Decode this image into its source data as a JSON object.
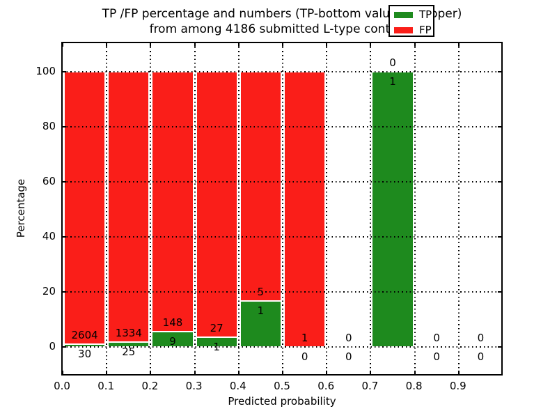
{
  "title_line1": "TP /FP percentage and numbers (TP-bottom value, FP-upper)",
  "title_line2": "from among 4186 submitted L-type contacts",
  "chart_data": {
    "type": "bar",
    "stacked": true,
    "title": "TP /FP percentage and numbers (TP-bottom value, FP-upper) from among 4186 submitted L-type contacts",
    "xlabel": "Predicted probability",
    "ylabel": "Percentage",
    "total_submitted": 4186,
    "xlim": [
      0.0,
      1.0
    ],
    "ylim": [
      -10.3,
      110.3
    ],
    "x_tick_labels": [
      "0.0",
      "0.1",
      "0.2",
      "0.3",
      "0.4",
      "0.5",
      "0.6",
      "0.7",
      "0.8",
      "0.9"
    ],
    "x_tick_values": [
      0.0,
      0.1,
      0.2,
      0.3,
      0.4,
      0.5,
      0.6,
      0.7,
      0.8,
      0.9
    ],
    "y_tick_values": [
      0,
      20,
      40,
      60,
      80,
      100
    ],
    "grid": true,
    "grid_style": "dotted",
    "bins": [
      {
        "range": "0.0-0.1",
        "tp_count": 30,
        "fp_count": 2604,
        "tp_pct": 1.14,
        "fp_pct": 98.86
      },
      {
        "range": "0.1-0.2",
        "tp_count": 25,
        "fp_count": 1334,
        "tp_pct": 1.84,
        "fp_pct": 98.16
      },
      {
        "range": "0.2-0.3",
        "tp_count": 9,
        "fp_count": 148,
        "tp_pct": 5.73,
        "fp_pct": 94.27
      },
      {
        "range": "0.3-0.4",
        "tp_count": 1,
        "fp_count": 27,
        "tp_pct": 3.57,
        "fp_pct": 96.43
      },
      {
        "range": "0.4-0.5",
        "tp_count": 1,
        "fp_count": 5,
        "tp_pct": 16.67,
        "fp_pct": 83.33
      },
      {
        "range": "0.5-0.6",
        "tp_count": 0,
        "fp_count": 1,
        "tp_pct": 0,
        "fp_pct": 100
      },
      {
        "range": "0.6-0.7",
        "tp_count": 0,
        "fp_count": 0,
        "tp_pct": 0,
        "fp_pct": 0
      },
      {
        "range": "0.7-0.8",
        "tp_count": 1,
        "fp_count": 0,
        "tp_pct": 100,
        "fp_pct": 0
      },
      {
        "range": "0.8-0.9",
        "tp_count": 0,
        "fp_count": 0,
        "tp_pct": 0,
        "fp_pct": 0
      },
      {
        "range": "0.9-1.0",
        "tp_count": 0,
        "fp_count": 0,
        "tp_pct": 0,
        "fp_pct": 0
      }
    ],
    "legend": {
      "position": "upper right",
      "entries": [
        {
          "label": "TP",
          "color": "#1e8a1e"
        },
        {
          "label": "FP",
          "color": "#fa1e19"
        }
      ]
    }
  },
  "colors": {
    "tp_green": "#1e8a1e",
    "fp_red": "#fa1e19",
    "frame": "#000000",
    "background": "#ffffff"
  }
}
